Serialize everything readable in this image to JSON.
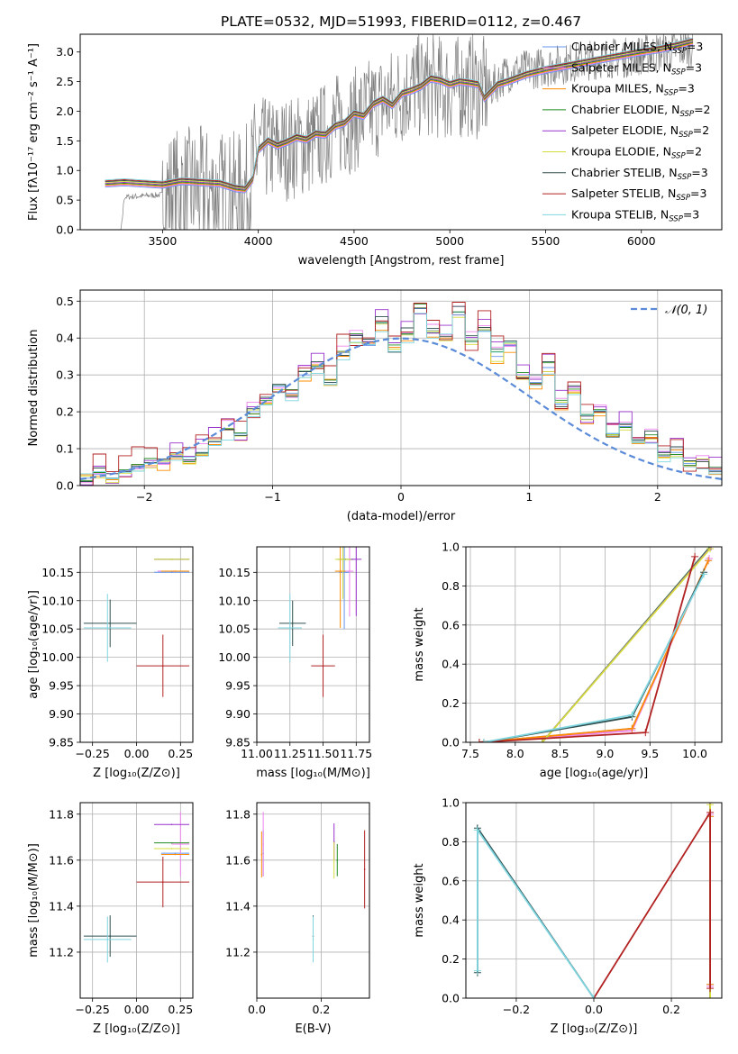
{
  "figure_title": "PLATE=0532, MJD=51993, FIBERID=0112, z=0.467",
  "series": [
    {
      "name": "Chabrier MILES, N",
      "sub": "SSP",
      "eq": "=3",
      "color": "#6495ed"
    },
    {
      "name": "Salpeter MILES, N",
      "sub": "SSP",
      "eq": "=3",
      "color": "#ee82ee"
    },
    {
      "name": "Kroupa MILES, N",
      "sub": "SSP",
      "eq": "=3",
      "color": "#ff8c00"
    },
    {
      "name": "Chabrier ELODIE, N",
      "sub": "SSP",
      "eq": "=2",
      "color": "#228b22"
    },
    {
      "name": "Salpeter ELODIE, N",
      "sub": "SSP",
      "eq": "=2",
      "color": "#9932cc"
    },
    {
      "name": "Kroupa ELODIE, N",
      "sub": "SSP",
      "eq": "=2",
      "color": "#d4dc3c"
    },
    {
      "name": "Chabrier STELIB, N",
      "sub": "SSP",
      "eq": "=3",
      "color": "#2f4f4f"
    },
    {
      "name": "Salpeter STELIB, N",
      "sub": "SSP",
      "eq": "=3",
      "color": "#b22222"
    },
    {
      "name": "Kroupa STELIB, N",
      "sub": "SSP",
      "eq": "=3",
      "color": "#7fd6e0"
    }
  ],
  "chart_data": [
    {
      "id": "spectrum",
      "type": "line",
      "xlabel": "wavelength [Angstrom, rest frame]",
      "ylabel": "Flux [fλ10⁻¹⁷ erg cm⁻² s⁻¹ A⁻¹]",
      "xlim": [
        3070,
        6420
      ],
      "ylim": [
        0,
        3.3
      ],
      "xticks": [
        3500,
        4000,
        4500,
        5000,
        5500,
        6000
      ],
      "yticks": [
        0.0,
        0.5,
        1.0,
        1.5,
        2.0,
        2.5,
        3.0
      ],
      "grid": false,
      "legend": "upper right",
      "data_color": "#808080",
      "data_envelope": {
        "x": [
          3200,
          3280,
          3300,
          3400,
          3500,
          3600,
          3700,
          3800,
          3900,
          3950,
          4000,
          4100,
          4200,
          4300,
          4400,
          4500,
          4600,
          4700,
          4800,
          4900,
          5000,
          5100,
          5200,
          5300,
          5400,
          5500,
          5600,
          5700,
          5800,
          5900,
          6000,
          6100,
          6200,
          6270
        ],
        "y": [
          0.0,
          0.0,
          0.7,
          0.72,
          0.74,
          0.8,
          0.82,
          0.75,
          0.72,
          0.9,
          1.5,
          1.5,
          1.55,
          1.65,
          1.9,
          2.0,
          2.2,
          2.35,
          2.55,
          2.6,
          2.5,
          2.6,
          2.5,
          2.8,
          2.85,
          2.9,
          2.95,
          3.0,
          3.05,
          3.05,
          3.1,
          3.15,
          3.2,
          3.25
        ]
      },
      "model_curve": {
        "x": [
          3200,
          3300,
          3400,
          3500,
          3600,
          3700,
          3800,
          3880,
          3930,
          3970,
          4000,
          4050,
          4100,
          4150,
          4200,
          4250,
          4300,
          4350,
          4400,
          4450,
          4500,
          4550,
          4600,
          4650,
          4700,
          4750,
          4800,
          4850,
          4900,
          4950,
          5000,
          5050,
          5100,
          5150,
          5180,
          5250,
          5300,
          5400,
          5500,
          5600,
          5700,
          5800,
          5900,
          6000,
          6100,
          6200,
          6270
        ],
        "y": [
          0.78,
          0.8,
          0.78,
          0.76,
          0.82,
          0.8,
          0.78,
          0.7,
          0.68,
          0.85,
          1.35,
          1.5,
          1.42,
          1.48,
          1.56,
          1.52,
          1.62,
          1.6,
          1.75,
          1.8,
          1.96,
          1.92,
          2.12,
          2.2,
          2.1,
          2.3,
          2.35,
          2.42,
          2.55,
          2.52,
          2.45,
          2.5,
          2.48,
          2.45,
          2.22,
          2.45,
          2.5,
          2.62,
          2.7,
          2.76,
          2.82,
          2.88,
          2.94,
          3.0,
          3.05,
          3.12,
          3.18
        ]
      }
    },
    {
      "id": "residuals",
      "type": "line",
      "xlabel": "(data-model)/error",
      "ylabel": "Normed distribution",
      "xlim": [
        -2.5,
        2.5
      ],
      "ylim": [
        0,
        0.53
      ],
      "xticks": [
        -2,
        -1,
        0,
        1,
        2
      ],
      "yticks": [
        0.0,
        0.1,
        0.2,
        0.3,
        0.4,
        0.5
      ],
      "grid": true,
      "legend": "upper right",
      "legend_label": "𝒩(0, 1)",
      "gaussian": {
        "mu": 0,
        "sigma": 1,
        "color": "#5b8bd8"
      },
      "hist_x": [
        -2.5,
        -2.4,
        -2.3,
        -2.2,
        -2.1,
        -2.0,
        -1.9,
        -1.8,
        -1.7,
        -1.6,
        -1.5,
        -1.4,
        -1.3,
        -1.2,
        -1.1,
        -1.0,
        -0.9,
        -0.8,
        -0.7,
        -0.6,
        -0.5,
        -0.4,
        -0.3,
        -0.2,
        -0.1,
        0.0,
        0.1,
        0.2,
        0.3,
        0.4,
        0.5,
        0.6,
        0.7,
        0.8,
        0.9,
        1.0,
        1.1,
        1.2,
        1.3,
        1.4,
        1.5,
        1.6,
        1.7,
        1.8,
        1.9,
        2.0,
        2.1,
        2.2,
        2.3,
        2.4
      ],
      "hist_y": [
        0.02,
        0.03,
        0.02,
        0.04,
        0.05,
        0.06,
        0.06,
        0.08,
        0.07,
        0.09,
        0.12,
        0.15,
        0.14,
        0.2,
        0.22,
        0.27,
        0.25,
        0.3,
        0.32,
        0.28,
        0.36,
        0.4,
        0.38,
        0.44,
        0.37,
        0.41,
        0.48,
        0.42,
        0.4,
        0.47,
        0.39,
        0.42,
        0.35,
        0.38,
        0.3,
        0.28,
        0.32,
        0.22,
        0.25,
        0.18,
        0.2,
        0.14,
        0.16,
        0.12,
        0.13,
        0.08,
        0.09,
        0.06,
        0.07,
        0.04
      ],
      "series_offsets": [
        0,
        0.02,
        -0.015,
        0.01,
        0.03,
        -0.01,
        0.015,
        0.04,
        -0.02
      ]
    },
    {
      "id": "age_vs_Z",
      "type": "scatter",
      "xlabel": "Z [log₁₀(Z/Z⊙)]",
      "ylabel": "age  [log₁₀(age/yr)]",
      "xlim": [
        -0.32,
        0.32
      ],
      "ylim": [
        9.85,
        10.195
      ],
      "xticks": [
        -0.25,
        0.0,
        0.25
      ],
      "yticks": [
        9.85,
        9.9,
        9.95,
        10.0,
        10.05,
        10.1,
        10.15
      ],
      "grid": true,
      "points": [
        {
          "s": 0,
          "x": 0.2,
          "y": 10.15,
          "ex": 0.1,
          "ey": 0
        },
        {
          "s": 1,
          "x": 0.21,
          "y": 10.152,
          "ex": 0.09,
          "ey": 0
        },
        {
          "s": 2,
          "x": 0.22,
          "y": 10.152,
          "ex": 0.08,
          "ey": 0
        },
        {
          "s": 3,
          "x": 0.2,
          "y": 10.173,
          "ex": 0.1,
          "ey": 0
        },
        {
          "s": 4,
          "x": 0.2,
          "y": 10.173,
          "ex": 0.1,
          "ey": 0
        },
        {
          "s": 5,
          "x": 0.2,
          "y": 10.173,
          "ex": 0.1,
          "ey": 0
        },
        {
          "s": 6,
          "x": -0.15,
          "y": 10.06,
          "ex": 0.15,
          "ey": 0.042
        },
        {
          "s": 7,
          "x": 0.15,
          "y": 9.985,
          "ex": 0.15,
          "ey": 0.055
        },
        {
          "s": 8,
          "x": -0.165,
          "y": 10.052,
          "ex": 0.135,
          "ey": 0.06
        }
      ]
    },
    {
      "id": "age_vs_mass",
      "type": "scatter",
      "xlabel": "mass [log₁₀(M/M⊙)]",
      "ylabel": "",
      "xlim": [
        11.0,
        11.85
      ],
      "ylim": [
        9.85,
        10.195
      ],
      "xticks": [
        11.0,
        11.25,
        11.5,
        11.75
      ],
      "yticks": [
        9.85,
        9.9,
        9.95,
        10.0,
        10.05,
        10.1,
        10.15
      ],
      "grid": true,
      "points": [
        {
          "s": 0,
          "x": 11.66,
          "y": 10.15,
          "ex": 0.04,
          "ey": 0.1
        },
        {
          "s": 1,
          "x": 11.7,
          "y": 10.152,
          "ex": 0.03,
          "ey": 0.08
        },
        {
          "s": 2,
          "x": 11.63,
          "y": 10.152,
          "ex": 0.04,
          "ey": 0.1
        },
        {
          "s": 3,
          "x": 11.67,
          "y": 10.173,
          "ex": 0.06,
          "ey": 0
        },
        {
          "s": 4,
          "x": 11.75,
          "y": 10.173,
          "ex": 0.04,
          "ey": 0.1
        },
        {
          "s": 5,
          "x": 11.65,
          "y": 10.173,
          "ex": 0.06,
          "ey": 0.07
        },
        {
          "s": 6,
          "x": 11.27,
          "y": 10.06,
          "ex": 0.1,
          "ey": 0.04
        },
        {
          "s": 7,
          "x": 11.5,
          "y": 9.985,
          "ex": 0.09,
          "ey": 0.055
        },
        {
          "s": 8,
          "x": 11.25,
          "y": 10.052,
          "ex": 0.09,
          "ey": 0.06
        }
      ]
    },
    {
      "id": "mw_vs_age",
      "type": "line",
      "xlabel": "age  [log₁₀(age/yr)]",
      "ylabel": "mass weight",
      "xlim": [
        7.45,
        10.3
      ],
      "ylim": [
        0,
        1.0
      ],
      "xticks": [
        7.5,
        8.0,
        8.5,
        9.0,
        9.5,
        10.0
      ],
      "yticks": [
        0.0,
        0.2,
        0.4,
        0.6,
        0.8,
        1.0
      ],
      "grid": true,
      "lines": [
        {
          "s": 0,
          "x": [
            7.6,
            9.3,
            10.15
          ],
          "y": [
            0.0,
            0.07,
            0.93
          ]
        },
        {
          "s": 1,
          "x": [
            7.6,
            9.3,
            10.16
          ],
          "y": [
            0.0,
            0.06,
            0.94
          ]
        },
        {
          "s": 2,
          "x": [
            7.6,
            9.3,
            10.15
          ],
          "y": [
            0.0,
            0.07,
            0.93
          ]
        },
        {
          "s": 3,
          "x": [
            8.3,
            10.17
          ],
          "y": [
            0.0,
            1.0
          ]
        },
        {
          "s": 4,
          "x": [
            8.3,
            10.18
          ],
          "y": [
            0.0,
            1.0
          ]
        },
        {
          "s": 5,
          "x": [
            8.3,
            10.17
          ],
          "y": [
            0.0,
            0.99
          ]
        },
        {
          "s": 6,
          "x": [
            7.65,
            9.3,
            10.1
          ],
          "y": [
            0.0,
            0.13,
            0.87
          ]
        },
        {
          "s": 7,
          "x": [
            7.6,
            9.45,
            10.0
          ],
          "y": [
            0.0,
            0.05,
            0.95
          ]
        },
        {
          "s": 8,
          "x": [
            7.65,
            9.3,
            10.1
          ],
          "y": [
            0.0,
            0.14,
            0.86
          ]
        }
      ]
    },
    {
      "id": "mass_vs_Z",
      "type": "scatter",
      "xlabel": "Z [log₁₀(Z/Z⊙)]",
      "ylabel": "mass [log₁₀(M/M⊙)]",
      "xlim": [
        -0.32,
        0.32
      ],
      "ylim": [
        11.0,
        11.85
      ],
      "xticks": [
        -0.25,
        0.0,
        0.25
      ],
      "yticks": [
        11.2,
        11.4,
        11.6,
        11.8
      ],
      "grid": true,
      "points": [
        {
          "s": 0,
          "x": 0.22,
          "y": 11.63,
          "ex": 0.08,
          "ey": 0
        },
        {
          "s": 1,
          "x": 0.25,
          "y": 11.67,
          "ex": 0.05,
          "ey": 0.14
        },
        {
          "s": 2,
          "x": 0.22,
          "y": 11.625,
          "ex": 0.08,
          "ey": 0
        },
        {
          "s": 3,
          "x": 0.2,
          "y": 11.675,
          "ex": 0.1,
          "ey": 0
        },
        {
          "s": 4,
          "x": 0.2,
          "y": 11.755,
          "ex": 0.1,
          "ey": 0
        },
        {
          "s": 5,
          "x": 0.2,
          "y": 11.65,
          "ex": 0.1,
          "ey": 0
        },
        {
          "s": 6,
          "x": -0.15,
          "y": 11.27,
          "ex": 0.15,
          "ey": 0.09
        },
        {
          "s": 7,
          "x": 0.15,
          "y": 11.505,
          "ex": 0.15,
          "ey": 0.11
        },
        {
          "s": 8,
          "x": -0.165,
          "y": 11.255,
          "ex": 0.135,
          "ey": 0.1
        }
      ]
    },
    {
      "id": "mass_vs_ebv",
      "type": "scatter",
      "xlabel": "E(B-V)",
      "ylabel": "",
      "xlim": [
        0.0,
        0.35
      ],
      "ylim": [
        11.0,
        11.85
      ],
      "xticks": [
        0.0,
        0.2
      ],
      "yticks": [
        11.2,
        11.4,
        11.6,
        11.8
      ],
      "grid": true,
      "points": [
        {
          "s": 0,
          "x": 0.02,
          "y": 11.63,
          "ex": 0,
          "ey": 0.1
        },
        {
          "s": 1,
          "x": 0.02,
          "y": 11.67,
          "ex": 0,
          "ey": 0.14
        },
        {
          "s": 2,
          "x": 0.015,
          "y": 11.625,
          "ex": 0,
          "ey": 0.1
        },
        {
          "s": 3,
          "x": 0.25,
          "y": 11.6,
          "ex": 0,
          "ey": 0.07
        },
        {
          "s": 4,
          "x": 0.24,
          "y": 11.68,
          "ex": 0,
          "ey": 0.08
        },
        {
          "s": 5,
          "x": 0.24,
          "y": 11.6,
          "ex": 0,
          "ey": 0.08
        },
        {
          "s": 6,
          "x": 0.175,
          "y": 11.27,
          "ex": 0,
          "ey": 0.09
        },
        {
          "s": 7,
          "x": 0.335,
          "y": 11.56,
          "ex": 0,
          "ey": 0.17
        },
        {
          "s": 8,
          "x": 0.175,
          "y": 11.255,
          "ex": 0,
          "ey": 0.1
        }
      ]
    },
    {
      "id": "mw_vs_Z",
      "type": "line",
      "xlabel": "Z [log₁₀(Z/Z⊙)]",
      "ylabel": "mass weight",
      "xlim": [
        -0.33,
        0.33
      ],
      "ylim": [
        0,
        1.0
      ],
      "xticks": [
        -0.2,
        0.0,
        0.2
      ],
      "yticks": [
        0.0,
        0.2,
        0.4,
        0.6,
        0.8,
        1.0
      ],
      "grid": true,
      "lines": [
        {
          "s": 0,
          "x": [
            0.3,
            0.3
          ],
          "y": [
            0.07,
            0.93
          ]
        },
        {
          "s": 1,
          "x": [
            0.3,
            0.3
          ],
          "y": [
            0.06,
            0.94
          ]
        },
        {
          "s": 2,
          "x": [
            0.3,
            0.3
          ],
          "y": [
            0.07,
            0.93
          ]
        },
        {
          "s": 3,
          "x": [
            0.3,
            0.3
          ],
          "y": [
            0.0,
            1.0
          ]
        },
        {
          "s": 4,
          "x": [
            0.3,
            0.3
          ],
          "y": [
            0.0,
            1.0
          ]
        },
        {
          "s": 5,
          "x": [
            0.3,
            0.3
          ],
          "y": [
            0.0,
            0.99
          ]
        },
        {
          "s": 6,
          "x": [
            -0.3,
            -0.3,
            0.0
          ],
          "y": [
            0.13,
            0.87,
            0.0
          ]
        },
        {
          "s": 7,
          "x": [
            0.0,
            0.3,
            0.3
          ],
          "y": [
            0.0,
            0.95,
            0.05
          ]
        },
        {
          "s": 8,
          "x": [
            -0.3,
            -0.3,
            0.0
          ],
          "y": [
            0.14,
            0.86,
            0.0
          ]
        }
      ]
    }
  ]
}
